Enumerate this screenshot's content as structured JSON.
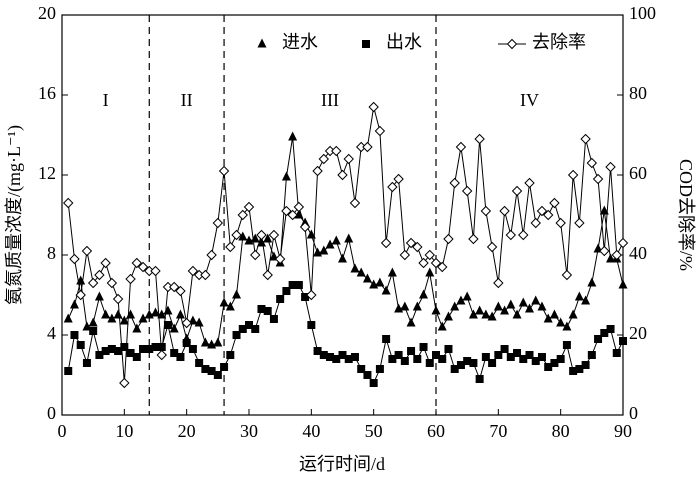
{
  "chart_data": {
    "type": "line",
    "xlabel": "运行时间/d",
    "ylabel": "氨氮质量浓度/(mg·L⁻¹)",
    "y2label": "COD去除率/%",
    "x": [
      1,
      2,
      3,
      4,
      5,
      6,
      7,
      8,
      9,
      10,
      11,
      12,
      13,
      14,
      15,
      16,
      17,
      18,
      19,
      20,
      21,
      22,
      23,
      24,
      25,
      26,
      27,
      28,
      29,
      30,
      31,
      32,
      33,
      34,
      35,
      36,
      37,
      38,
      39,
      40,
      41,
      42,
      43,
      44,
      45,
      46,
      47,
      48,
      49,
      50,
      51,
      52,
      53,
      54,
      55,
      56,
      57,
      58,
      59,
      60,
      61,
      62,
      63,
      64,
      65,
      66,
      67,
      68,
      69,
      70,
      71,
      72,
      73,
      74,
      75,
      76,
      77,
      78,
      79,
      80,
      81,
      82,
      83,
      84,
      85,
      86,
      87,
      88,
      89,
      90
    ],
    "series": [
      {
        "name": "进水",
        "color": "#000000",
        "marker": "triangle",
        "values": [
          4.8,
          5.5,
          6.7,
          4.4,
          4.6,
          5.9,
          5.0,
          4.8,
          5.0,
          4.7,
          5.0,
          4.3,
          4.8,
          5.0,
          5.1,
          5.0,
          5.2,
          4.3,
          5.0,
          3.8,
          4.7,
          4.6,
          3.6,
          3.5,
          3.6,
          5.6,
          5.4,
          6.0,
          8.9,
          8.7,
          8.8,
          8.6,
          8.8,
          7.9,
          7.6,
          11.9,
          13.9,
          10.0,
          9.6,
          9.0,
          8.1,
          8.2,
          8.5,
          8.7,
          7.8,
          8.8,
          7.3,
          7.1,
          6.8,
          6.5,
          6.6,
          6.2,
          7.1,
          5.3,
          5.4,
          4.6,
          5.4,
          6.0,
          7.1,
          5.2,
          4.4,
          4.9,
          5.4,
          5.7,
          5.9,
          5.0,
          5.2,
          5.0,
          4.9,
          5.4,
          5.2,
          5.5,
          5.0,
          5.6,
          5.3,
          5.7,
          5.4,
          4.8,
          5.0,
          4.6,
          4.4,
          5.0,
          5.9,
          5.7,
          6.6,
          8.3,
          10.2,
          7.8,
          7.8,
          6.5
        ]
      },
      {
        "name": "出水",
        "color": "#000000",
        "marker": "square",
        "values": [
          2.2,
          4.0,
          3.5,
          2.6,
          4.2,
          3.0,
          3.2,
          3.3,
          3.2,
          3.4,
          3.1,
          2.9,
          3.3,
          3.3,
          3.4,
          3.4,
          4.5,
          3.1,
          2.9,
          3.6,
          3.3,
          2.6,
          2.3,
          2.2,
          2.0,
          2.4,
          3.0,
          4.0,
          4.3,
          4.5,
          4.3,
          5.3,
          5.2,
          4.8,
          5.8,
          6.2,
          6.5,
          6.5,
          5.9,
          4.5,
          3.2,
          3.0,
          2.9,
          2.8,
          3.0,
          2.8,
          2.9,
          2.3,
          2.0,
          1.6,
          2.3,
          3.8,
          2.8,
          3.0,
          2.7,
          3.2,
          2.8,
          3.4,
          2.6,
          3.0,
          2.8,
          3.3,
          2.3,
          2.5,
          2.7,
          2.6,
          1.8,
          2.9,
          2.6,
          3.0,
          3.3,
          2.9,
          3.1,
          2.8,
          3.0,
          2.7,
          2.9,
          2.4,
          2.6,
          2.8,
          3.5,
          2.2,
          2.3,
          2.5,
          3.0,
          3.8,
          4.1,
          4.3,
          3.1,
          3.7
        ]
      },
      {
        "name": "去除率",
        "color": "#000000",
        "marker": "diamond",
        "axis": "y2",
        "values": [
          53,
          39,
          30,
          41,
          33,
          35,
          38,
          33,
          29,
          8,
          34,
          38,
          37,
          36,
          36,
          15,
          32,
          32,
          31,
          23,
          36,
          35,
          35,
          40,
          48,
          61,
          42,
          45,
          50,
          52,
          40,
          45,
          35,
          45,
          39,
          51,
          50,
          52,
          47,
          30,
          61,
          64,
          66,
          66,
          60,
          64,
          53,
          67,
          67,
          77,
          71,
          43,
          57,
          59,
          40,
          43,
          42,
          38,
          40,
          38,
          37,
          44,
          58,
          67,
          56,
          44,
          69,
          51,
          42,
          33,
          51,
          45,
          56,
          45,
          58,
          48,
          51,
          50,
          53,
          48,
          35,
          60,
          48,
          69,
          63,
          59,
          41,
          62,
          40,
          43
        ]
      }
    ],
    "phases": [
      {
        "label": "I",
        "range": [
          0,
          14
        ]
      },
      {
        "label": "II",
        "range": [
          14,
          26
        ]
      },
      {
        "label": "III",
        "range": [
          26,
          60
        ]
      },
      {
        "label": "IV",
        "range": [
          60,
          90
        ]
      }
    ],
    "xlim": [
      0,
      90
    ],
    "xticks": [
      0,
      10,
      20,
      30,
      40,
      50,
      60,
      70,
      80,
      90
    ],
    "ylim": [
      0,
      20
    ],
    "yticks": [
      0,
      4,
      8,
      12,
      16,
      20
    ],
    "y2lim": [
      0,
      100
    ],
    "y2ticks": [
      0,
      20,
      40,
      60,
      80,
      100
    ],
    "legend": "top"
  }
}
